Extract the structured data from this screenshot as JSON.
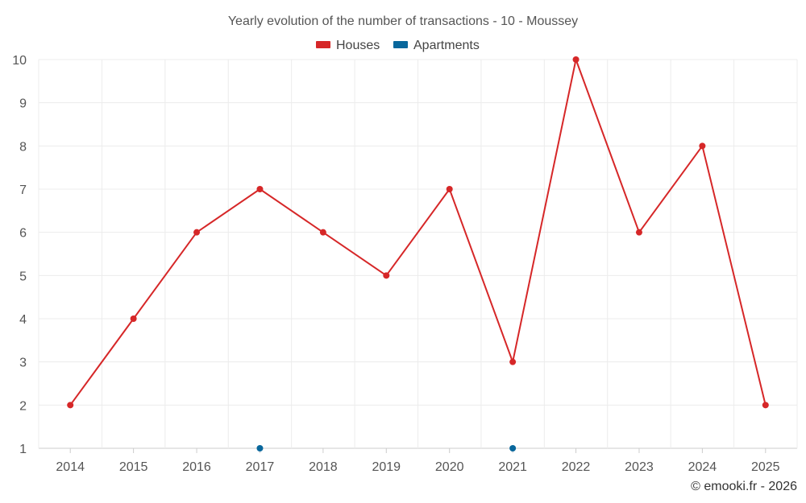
{
  "chart_data": {
    "type": "line",
    "title": "Yearly evolution of the number of transactions - 10 - Moussey",
    "categories": [
      "2014",
      "2015",
      "2016",
      "2017",
      "2018",
      "2019",
      "2020",
      "2021",
      "2022",
      "2023",
      "2024",
      "2025"
    ],
    "series": [
      {
        "name": "Houses",
        "color": "#d62728",
        "values": [
          2,
          4,
          6,
          7,
          6,
          5,
          7,
          3,
          10,
          6,
          8,
          2
        ]
      },
      {
        "name": "Apartments",
        "color": "#08679c",
        "values": [
          null,
          null,
          null,
          1,
          null,
          null,
          null,
          1,
          null,
          null,
          null,
          null
        ]
      }
    ],
    "ylim": [
      1,
      10
    ],
    "yticks": [
      1,
      2,
      3,
      4,
      5,
      6,
      7,
      8,
      9,
      10
    ],
    "xlabel": "",
    "ylabel": "",
    "grid": true,
    "legend": "top-center"
  },
  "footer": "© emooki.fr - 2026"
}
